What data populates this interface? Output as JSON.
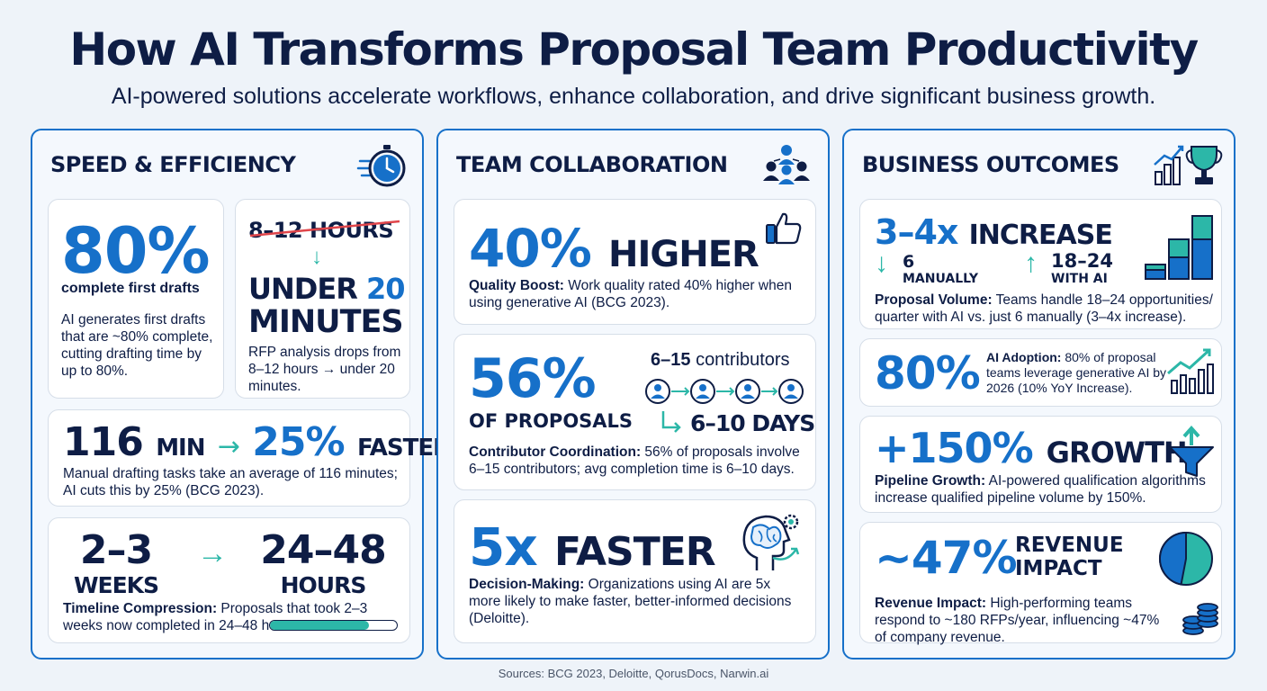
{
  "header": {
    "title": "How AI Transforms Proposal Team Productivity",
    "subtitle": "AI-powered solutions accelerate workflows, enhance collaboration, and drive significant business growth."
  },
  "colors": {
    "navy": "#0e1d45",
    "blue": "#1670c9",
    "teal": "#2cb7a8",
    "strike": "#e0454a"
  },
  "speed": {
    "title": "SPEED & EFFICIENCY",
    "icon": "stopwatch-icon",
    "drafts": {
      "stat": "80%",
      "label": "complete first drafts",
      "desc": "AI generates first drafts that are ~80% complete, cutting drafting time by up to 80%."
    },
    "rfp": {
      "old": "8–12 HOURS",
      "new_prefix": "UNDER",
      "new_num": "20",
      "new_unit": "MINUTES",
      "desc": "RFP analysis drops from 8–12 hours → under 20 minutes."
    },
    "drafting": {
      "num": "116",
      "unit": "MIN",
      "pct": "25%",
      "faster": "FASTER",
      "desc": "Manual drafting tasks take an average of 116 minutes; AI cuts this by 25% (BCG 2023)."
    },
    "timeline": {
      "from_num": "2–3",
      "from_unit": "WEEKS",
      "to_num": "24–48",
      "to_unit": "HOURS",
      "desc_bold": "Timeline Compression:",
      "desc": " Proposals that took 2–3 weeks now completed in 24–48 hours.",
      "progress": 0.78
    }
  },
  "collab": {
    "title": "TEAM COLLABORATION",
    "icon": "team-network-icon",
    "quality": {
      "stat": "40%",
      "word": "HIGHER",
      "desc_bold": "Quality Boost:",
      "desc": " Work quality rated 40% higher when using generative AI (BCG 2023)."
    },
    "coord": {
      "stat": "56%",
      "sub": "OF PROPOSALS",
      "contrib_num": "6–15",
      "contrib_label": "contributors",
      "days": "6–10 DAYS",
      "desc_bold": "Contributor Coordination:",
      "desc": " 56% of proposals involve 6–15 contributors; avg completion time is 6–10 days."
    },
    "decision": {
      "stat": "5x",
      "word": "FASTER",
      "desc_bold": "Decision-Making:",
      "desc": " Organizations using AI are 5x more likely to make faster, better-informed decisions (Deloitte)."
    }
  },
  "outcomes": {
    "title": "BUSINESS OUTCOMES",
    "icon": "growth-trophy-icon",
    "volume": {
      "stat": "3–4x",
      "word": "INCREASE",
      "manual_num": "6",
      "manual_label": "MANUALLY",
      "ai_num": "18–24",
      "ai_label": "WITH AI",
      "desc_bold": "Proposal Volume:",
      "desc": " Teams handle 18–24 opportunities/ quarter with AI vs. just 6 manually (3–4x increase)."
    },
    "adoption": {
      "stat": "80%",
      "desc_bold": "AI Adoption:",
      "desc": " 80% of proposal teams leverage generative AI by 2026 (10% YoY Increase)."
    },
    "pipeline": {
      "stat": "+150%",
      "word": "GROWTH",
      "desc_bold": "Pipeline Growth:",
      "desc": " AI-powered qualification algorithms increase qualified pipeline volume by 150%."
    },
    "revenue": {
      "stat": "~47%",
      "word1": "REVENUE",
      "word2": "IMPACT",
      "desc_bold": "Revenue Impact:",
      "desc": " High-performing teams respond to ~180 RFPs/year, influencing ~47% of company revenue.",
      "share": 0.47
    }
  },
  "footer": {
    "sources": "Sources: BCG 2023, Deloitte, QorusDocs, Narwin.ai"
  }
}
